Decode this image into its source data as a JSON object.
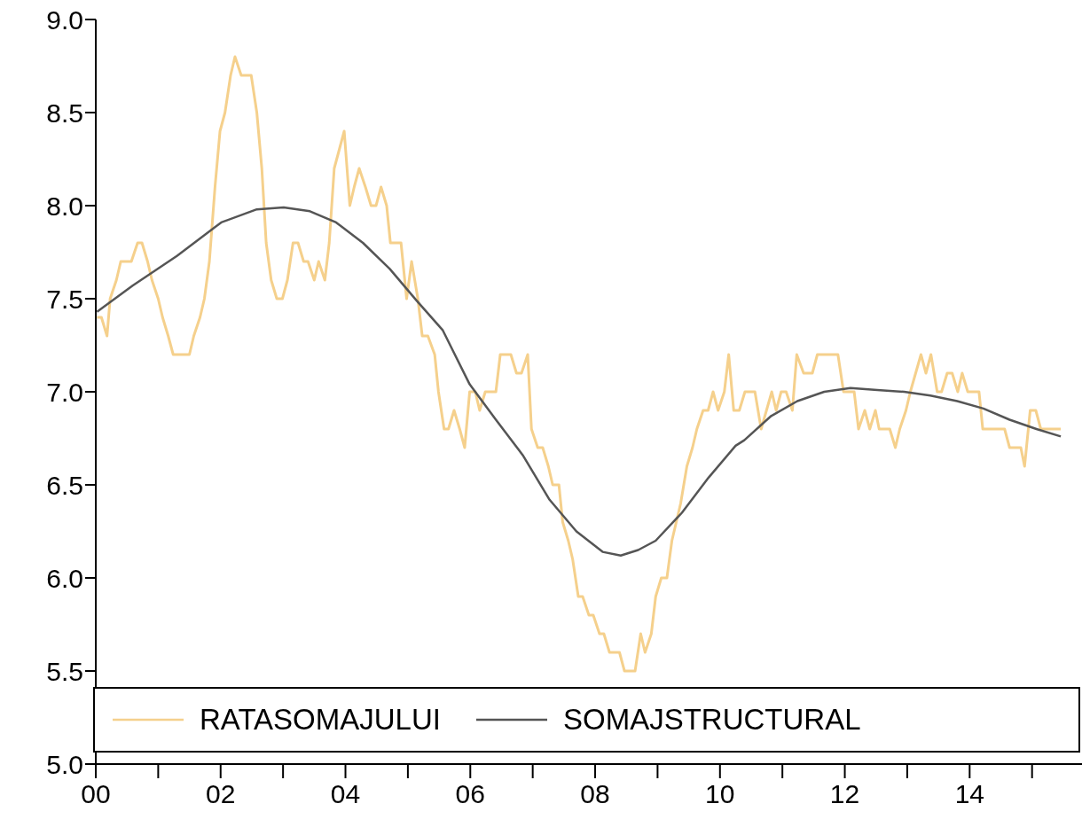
{
  "chart_data": {
    "type": "line",
    "xlim": [
      2000,
      2015.8
    ],
    "ylim": [
      5,
      9
    ],
    "xticks": [
      {
        "value": 2000,
        "label": "00"
      },
      {
        "value": 2001,
        "label": null
      },
      {
        "value": 2002,
        "label": "02"
      },
      {
        "value": 2003,
        "label": null
      },
      {
        "value": 2004,
        "label": "04"
      },
      {
        "value": 2005,
        "label": null
      },
      {
        "value": 2006,
        "label": "06"
      },
      {
        "value": 2007,
        "label": null
      },
      {
        "value": 2008,
        "label": "08"
      },
      {
        "value": 2009,
        "label": null
      },
      {
        "value": 2010,
        "label": "10"
      },
      {
        "value": 2011,
        "label": null
      },
      {
        "value": 2012,
        "label": "12"
      },
      {
        "value": 2013,
        "label": null
      },
      {
        "value": 2014,
        "label": "14"
      },
      {
        "value": 2015,
        "label": null
      }
    ],
    "yticks": [
      {
        "value": 5,
        "label": "5.0"
      },
      {
        "value": 5.5,
        "label": "5.5"
      },
      {
        "value": 6,
        "label": "6.0"
      },
      {
        "value": 6.5,
        "label": "6.5"
      },
      {
        "value": 7,
        "label": "7.0"
      },
      {
        "value": 7.5,
        "label": "7.5"
      },
      {
        "value": 8,
        "label": "8.0"
      },
      {
        "value": 8.5,
        "label": "8.5"
      },
      {
        "value": 9,
        "label": "9.0"
      }
    ],
    "grid": false,
    "legend": "bottom",
    "marker": "none",
    "line_style": "solid",
    "series": [
      {
        "name": "RATASOMAJULUI",
        "color": "#f5d08c",
        "x": [
          2000.02,
          2000.09,
          2000.18,
          2000.23,
          2000.33,
          2000.4,
          2000.57,
          2000.67,
          2000.74,
          2000.83,
          2000.9,
          2001.0,
          2001.07,
          2001.16,
          2001.24,
          2001.5,
          2001.57,
          2001.67,
          2001.74,
          2001.82,
          2001.91,
          2001.99,
          2002.07,
          2002.16,
          2002.23,
          2002.33,
          2002.49,
          2002.58,
          2002.66,
          2002.73,
          2002.81,
          2002.9,
          2002.99,
          2003.07,
          2003.16,
          2003.24,
          2003.33,
          2003.4,
          2003.5,
          2003.57,
          2003.67,
          2003.74,
          2003.82,
          2003.9,
          2003.98,
          2004.07,
          2004.14,
          2004.22,
          2004.32,
          2004.41,
          2004.49,
          2004.57,
          2004.66,
          2004.72,
          2004.89,
          2004.98,
          2005.06,
          2005.16,
          2005.23,
          2005.32,
          2005.43,
          2005.49,
          2005.58,
          2005.65,
          2005.74,
          2005.83,
          2005.91,
          2005.99,
          2006.08,
          2006.15,
          2006.24,
          2006.41,
          2006.48,
          2006.65,
          2006.74,
          2006.82,
          2006.92,
          2006.98,
          2007.08,
          2007.16,
          2007.25,
          2007.32,
          2007.42,
          2007.48,
          2007.57,
          2007.64,
          2007.73,
          2007.8,
          2007.9,
          2007.97,
          2008.07,
          2008.14,
          2008.23,
          2008.39,
          2008.47,
          2008.64,
          2008.73,
          2008.8,
          2008.9,
          2008.97,
          2009.06,
          2009.15,
          2009.23,
          2009.3,
          2009.37,
          2009.47,
          2009.56,
          2009.63,
          2009.73,
          2009.81,
          2009.89,
          2009.97,
          2010.07,
          2010.14,
          2010.22,
          2010.31,
          2010.4,
          2010.56,
          2010.66,
          2010.83,
          2010.9,
          2010.98,
          2011.06,
          2011.16,
          2011.23,
          2011.34,
          2011.48,
          2011.56,
          2011.89,
          2011.98,
          2012.15,
          2012.22,
          2012.32,
          2012.4,
          2012.49,
          2012.55,
          2012.72,
          2012.81,
          2012.88,
          2012.98,
          2013.05,
          2013.22,
          2013.3,
          2013.38,
          2013.48,
          2013.55,
          2013.64,
          2013.72,
          2013.81,
          2013.88,
          2013.97,
          2014.15,
          2014.21,
          2014.56,
          2014.64,
          2014.82,
          2014.88,
          2014.97,
          2015.06,
          2015.14,
          2015.46
        ],
        "values": [
          7.4,
          7.4,
          7.3,
          7.5,
          7.6,
          7.7,
          7.7,
          7.8,
          7.8,
          7.7,
          7.6,
          7.5,
          7.4,
          7.3,
          7.2,
          7.2,
          7.3,
          7.4,
          7.5,
          7.7,
          8.1,
          8.4,
          8.5,
          8.7,
          8.8,
          8.7,
          8.7,
          8.5,
          8.2,
          7.8,
          7.6,
          7.5,
          7.5,
          7.6,
          7.8,
          7.8,
          7.7,
          7.7,
          7.6,
          7.7,
          7.6,
          7.8,
          8.2,
          8.3,
          8.4,
          8.0,
          8.1,
          8.2,
          8.1,
          8.0,
          8.0,
          8.1,
          8.0,
          7.8,
          7.8,
          7.5,
          7.7,
          7.5,
          7.3,
          7.3,
          7.2,
          7.0,
          6.8,
          6.8,
          6.9,
          6.8,
          6.7,
          7.0,
          7.0,
          6.9,
          7.0,
          7.0,
          7.2,
          7.2,
          7.1,
          7.1,
          7.2,
          6.8,
          6.7,
          6.7,
          6.6,
          6.5,
          6.5,
          6.3,
          6.2,
          6.1,
          5.9,
          5.9,
          5.8,
          5.8,
          5.7,
          5.7,
          5.6,
          5.6,
          5.5,
          5.5,
          5.7,
          5.6,
          5.7,
          5.9,
          6.0,
          6.0,
          6.2,
          6.3,
          6.4,
          6.6,
          6.7,
          6.8,
          6.9,
          6.9,
          7.0,
          6.9,
          7.0,
          7.2,
          6.9,
          6.9,
          7.0,
          7.0,
          6.8,
          7.0,
          6.9,
          7.0,
          7.0,
          6.9,
          7.2,
          7.1,
          7.1,
          7.2,
          7.2,
          7.0,
          7.0,
          6.8,
          6.9,
          6.8,
          6.9,
          6.8,
          6.8,
          6.7,
          6.8,
          6.9,
          7.0,
          7.2,
          7.1,
          7.2,
          7.0,
          7.0,
          7.1,
          7.1,
          7.0,
          7.1,
          7.0,
          7.0,
          6.8,
          6.8,
          6.7,
          6.7,
          6.6,
          6.9,
          6.9,
          6.8,
          6.8
        ]
      },
      {
        "name": "SOMAJSTRUCTURAL",
        "color": "#555555",
        "x": [
          2000.02,
          2000.59,
          2001.3,
          2002.01,
          2002.58,
          2003.01,
          2003.43,
          2003.85,
          2004.28,
          2004.71,
          2005.14,
          2005.56,
          2005.99,
          2006.41,
          2006.84,
          2007.27,
          2007.7,
          2008.12,
          2008.41,
          2008.69,
          2008.97,
          2009.39,
          2009.82,
          2010.25,
          2010.39,
          2010.82,
          2011.24,
          2011.67,
          2012.09,
          2012.52,
          2012.95,
          2013.37,
          2013.8,
          2014.22,
          2014.64,
          2015.07,
          2015.46
        ],
        "values": [
          7.43,
          7.57,
          7.73,
          7.91,
          7.98,
          7.99,
          7.97,
          7.91,
          7.8,
          7.66,
          7.49,
          7.33,
          7.04,
          6.85,
          6.66,
          6.42,
          6.25,
          6.14,
          6.12,
          6.15,
          6.2,
          6.35,
          6.54,
          6.71,
          6.74,
          6.87,
          6.95,
          7.0,
          7.02,
          7.01,
          7.0,
          6.98,
          6.95,
          6.91,
          6.85,
          6.8,
          6.76
        ]
      }
    ]
  }
}
